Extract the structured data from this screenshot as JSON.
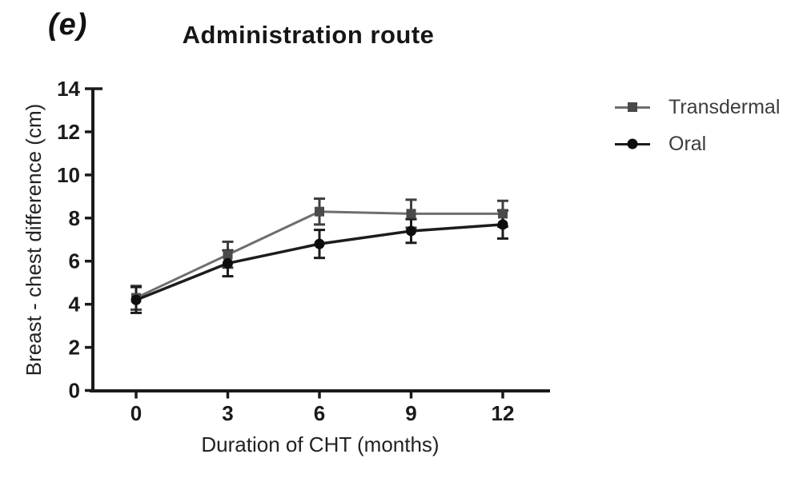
{
  "panel_label": "(e)",
  "title": "Administration route",
  "chart_data": {
    "type": "line",
    "title": "Administration route",
    "xlabel": "Duration of CHT (months)",
    "ylabel": "Breast - chest difference (cm)",
    "x": [
      0,
      3,
      6,
      9,
      12
    ],
    "x_ticks": [
      0,
      3,
      6,
      9,
      12
    ],
    "y_ticks": [
      0,
      2,
      4,
      6,
      8,
      10,
      12,
      14
    ],
    "xlim": [
      0,
      12
    ],
    "ylim": [
      0,
      14
    ],
    "grid": false,
    "error_bars": true,
    "legend_position": "right",
    "series": [
      {
        "name": "Transdermal",
        "marker": "square",
        "line_color": "#6e6e6e",
        "marker_color": "#4a4a4a",
        "error_color": "#3f3f3f",
        "values": [
          4.3,
          6.3,
          8.3,
          8.2,
          8.2
        ],
        "errors": [
          0.55,
          0.6,
          0.6,
          0.65,
          0.6
        ]
      },
      {
        "name": "Oral",
        "marker": "circle",
        "line_color": "#1c1c1c",
        "marker_color": "#0d0d0d",
        "error_color": "#1c1c1c",
        "values": [
          4.2,
          5.9,
          6.8,
          7.4,
          7.7
        ],
        "errors": [
          0.6,
          0.6,
          0.65,
          0.55,
          0.65
        ]
      }
    ]
  },
  "colors": {
    "axis": "#1a1a1a",
    "tick_label": "#1a1a1a",
    "legend_text": "#3d3d3d"
  }
}
